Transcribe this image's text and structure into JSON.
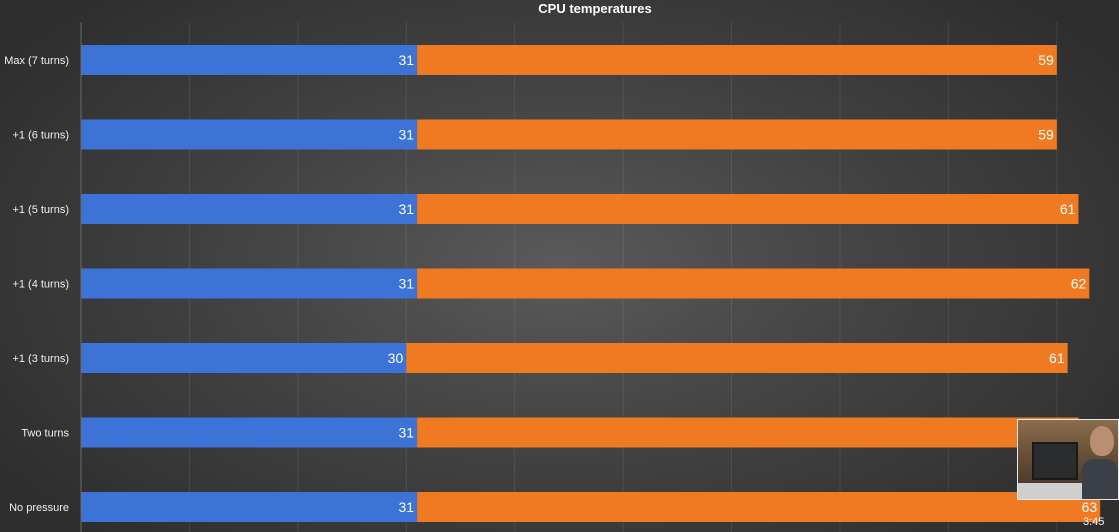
{
  "chart_data": {
    "type": "bar",
    "orientation": "horizontal",
    "stacked": true,
    "title": "CPU temperatures",
    "categories": [
      "Max (7 turns)",
      "+1 (6 turns)",
      "+1  (5 turns)",
      "+1 (4 turns)",
      "+1 (3 turns)",
      "Two turns",
      "No pressure"
    ],
    "series": [
      {
        "values": [
          31,
          31,
          31,
          31,
          30,
          31,
          31
        ],
        "color": "#3d72d6"
      },
      {
        "values": [
          59,
          59,
          61,
          62,
          61,
          61,
          63
        ],
        "color": "#f07a22"
      }
    ],
    "xlim": [
      0,
      95
    ],
    "grid": true,
    "legend": "none"
  },
  "overlay": {
    "thumbnail_name": "video-thumbnail",
    "timestamp": "3:45"
  }
}
